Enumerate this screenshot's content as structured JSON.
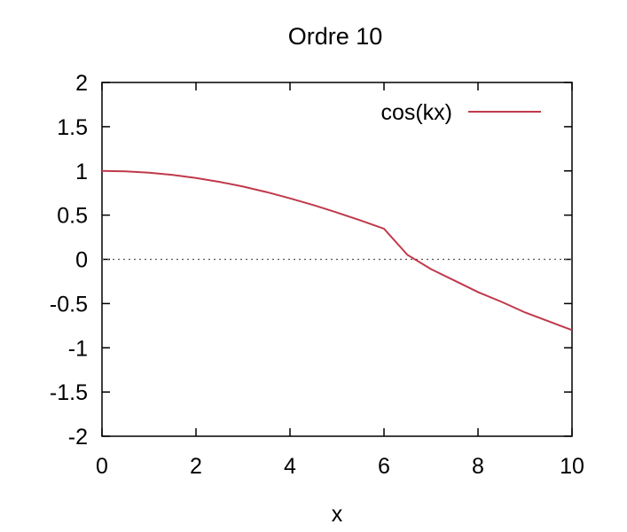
{
  "chart_data": {
    "type": "line",
    "title": "Ordre 10",
    "xlabel": "x",
    "ylabel": "",
    "xlim": [
      0,
      10
    ],
    "ylim": [
      -2,
      2
    ],
    "x_ticks": [
      "0",
      "2",
      "4",
      "6",
      "8",
      "10"
    ],
    "y_ticks": [
      "2",
      "1.5",
      "1",
      "0.5",
      "0",
      "-0.5",
      "-1",
      "-1.5",
      "-2"
    ],
    "grid": false,
    "zero_line": "dotted",
    "legend_position": "top-right",
    "series": [
      {
        "name": "cos(kx)",
        "color": "#c0394b",
        "x": [
          0,
          0.5,
          1,
          1.5,
          2,
          2.5,
          3,
          3.5,
          4,
          4.5,
          5,
          5.5,
          6,
          6.5,
          7,
          7.5,
          8,
          8.5,
          9,
          9.5,
          10
        ],
        "y": [
          1.0,
          0.995,
          0.98,
          0.955,
          0.92,
          0.876,
          0.823,
          0.761,
          0.69,
          0.613,
          0.529,
          0.44,
          0.346,
          0.05,
          -0.11,
          -0.24,
          -0.37,
          -0.48,
          -0.6,
          -0.7,
          -0.8
        ]
      }
    ]
  }
}
